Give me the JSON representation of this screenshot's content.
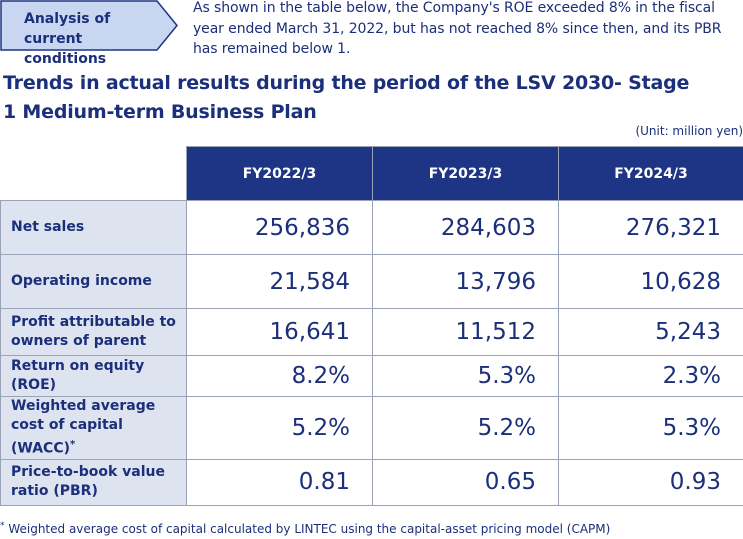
{
  "tag": {
    "label": "Analysis of current conditions"
  },
  "intro": "As shown in the table below, the Company's ROE exceeded 8% in the fiscal year ended March 31, 2022, but has not reached 8% since then, and its PBR has remained below 1.",
  "heading": "Trends in actual results during the period of the LSV 2030- Stage 1 Medium-term Business Plan",
  "unit": "(Unit: million yen)",
  "table": {
    "columns": [
      "FY2022/3",
      "FY2023/3",
      "FY2024/3"
    ],
    "rows": [
      {
        "label": "Net sales",
        "values": [
          "256,836",
          "284,603",
          "276,321"
        ]
      },
      {
        "label": "Operating income",
        "values": [
          "21,584",
          "13,796",
          "10,628"
        ]
      },
      {
        "label": "Profit attributable to owners of parent",
        "values": [
          "16,641",
          "11,512",
          "5,243"
        ]
      },
      {
        "label": "Return on equity (ROE)",
        "values": [
          "8.2%",
          "5.3%",
          "2.3%"
        ]
      },
      {
        "label": "Weighted average cost of capital (WACC)",
        "label_mark": "*",
        "values": [
          "5.2%",
          "5.2%",
          "5.3%"
        ]
      },
      {
        "label": "Price-to-book value ratio (PBR)",
        "values": [
          "0.81",
          "0.65",
          "0.93"
        ]
      }
    ]
  },
  "footnote": {
    "mark": "*",
    "text": "Weighted average cost of capital calculated by LINTEC using the capital-asset pricing model (CAPM)"
  },
  "colors": {
    "header_bg": "#1d3584",
    "label_bg": "#dde3ef",
    "text": "#1b2f7a",
    "tag_bg": "#c9d6f2"
  }
}
